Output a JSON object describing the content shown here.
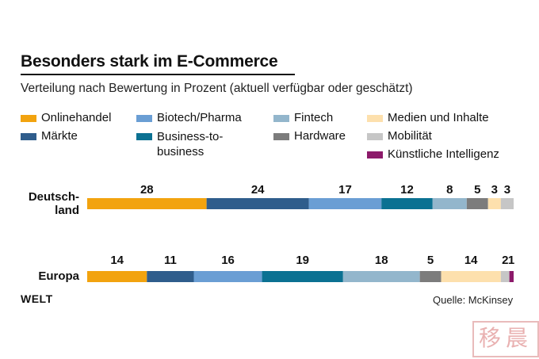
{
  "title": "Besonders stark im E-Commerce",
  "subtitle": "Verteilung nach Bewertung in Prozent (aktuell verfügbar oder geschätzt)",
  "branding": {
    "logo_text": "WELT",
    "source": "Quelle: McKinsey",
    "watermark_text": "移晨"
  },
  "colors": {
    "Onlinehandel": "#f2a30f",
    "Märkte": "#2f5d8c",
    "Biotech/Pharma": "#6a9ed4",
    "Business-to-business": "#0b7192",
    "Fintech": "#93b6cc",
    "Hardware": "#7c7c7c",
    "Medien und Inhalte": "#fde0ad",
    "Mobilität": "#c6c6c6",
    "Künstliche Intelligenz": "#8c1a6a"
  },
  "legend": [
    {
      "label": "Onlinehandel",
      "series": "Onlinehandel"
    },
    {
      "label": "Märkte",
      "series": "Märkte"
    },
    {
      "label": "Biotech/Pharma",
      "series": "Biotech/Pharma"
    },
    {
      "label_line1": "Business-to-",
      "label_line2": "business",
      "series": "Business-to-business"
    },
    {
      "label": "Fintech",
      "series": "Fintech"
    },
    {
      "label": "Hardware",
      "series": "Hardware"
    },
    {
      "label": "Medien und Inhalte",
      "series": "Medien und Inhalte"
    },
    {
      "label": "Mobilität",
      "series": "Mobilität"
    },
    {
      "label": "Künstliche Intelligenz",
      "series": "Künstliche Intelligenz"
    }
  ],
  "chart_data": {
    "type": "bar",
    "stacked": true,
    "orientation": "horizontal",
    "categories": [
      "Deutschland",
      "Europa"
    ],
    "category_labels": [
      {
        "line1": "Deutsch-",
        "line2": "land"
      },
      {
        "line1": "Europa"
      }
    ],
    "series": [
      {
        "name": "Onlinehandel",
        "values": [
          28,
          14
        ]
      },
      {
        "name": "Märkte",
        "values": [
          24,
          11
        ]
      },
      {
        "name": "Biotech/Pharma",
        "values": [
          17,
          16
        ]
      },
      {
        "name": "Business-to-business",
        "values": [
          12,
          19
        ]
      },
      {
        "name": "Fintech",
        "values": [
          8,
          18
        ]
      },
      {
        "name": "Hardware",
        "values": [
          5,
          5
        ]
      },
      {
        "name": "Medien und Inhalte",
        "values": [
          3,
          14
        ]
      },
      {
        "name": "Mobilität",
        "values": [
          3,
          2
        ]
      },
      {
        "name": "Künstliche Intelligenz",
        "values": [
          0,
          1
        ]
      }
    ],
    "data_labels": [
      [
        "28",
        "24",
        "17",
        "12",
        "8",
        "5",
        "3",
        "3"
      ],
      [
        "14",
        "11",
        "16",
        "19",
        "18",
        "5",
        "14",
        "2",
        "1"
      ]
    ],
    "unit": "Prozent",
    "grid": false,
    "legend_position": "top"
  }
}
